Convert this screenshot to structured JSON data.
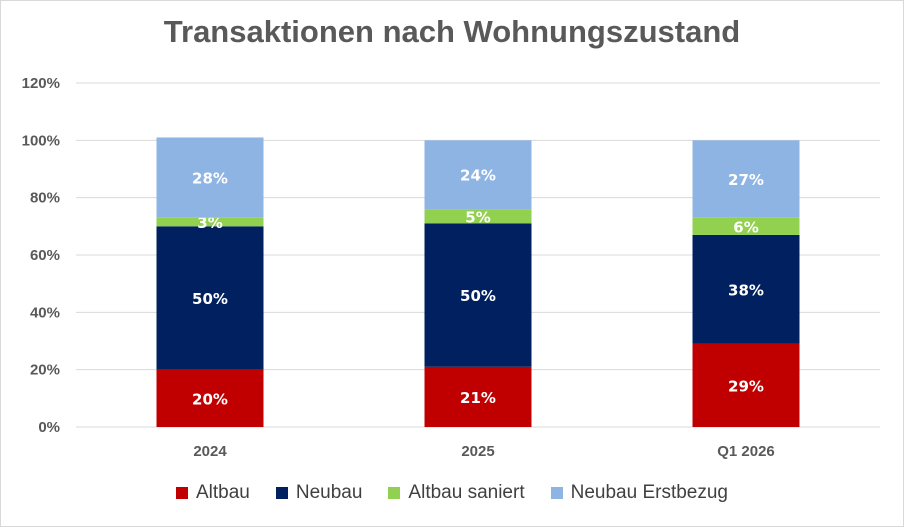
{
  "chart_data": {
    "type": "bar",
    "stacked": true,
    "title": "Transaktionen nach Wohnungszustand",
    "categories": [
      "2024",
      "2025",
      "Q1 2026"
    ],
    "ylim": [
      0,
      120
    ],
    "yticks": [
      "0%",
      "20%",
      "40%",
      "60%",
      "80%",
      "100%",
      "120%"
    ],
    "grid": true,
    "legend_position": "bottom",
    "series": [
      {
        "name": "Altbau",
        "color": "#c00000",
        "label_color": "#ffffff",
        "values": [
          20,
          21,
          29
        ]
      },
      {
        "name": "Neubau",
        "color": "#002060",
        "label_color": "#ffffff",
        "values": [
          50,
          50,
          38
        ]
      },
      {
        "name": "Altbau saniert",
        "color": "#92d050",
        "label_color": "#ffffff",
        "values": [
          3,
          5,
          6
        ]
      },
      {
        "name": "Neubau Erstbezug",
        "color": "#8eb4e3",
        "label_color": "#ffffff",
        "values": [
          28,
          24,
          27
        ]
      }
    ],
    "value_suffix": "%"
  }
}
